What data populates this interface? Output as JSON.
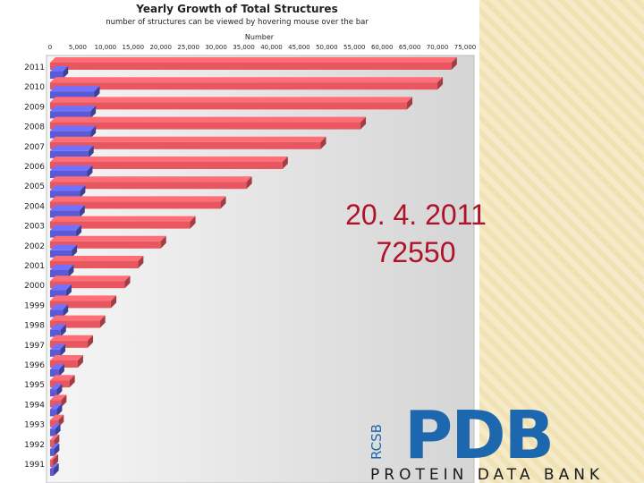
{
  "chart_data": {
    "type": "bar",
    "orientation": "horizontal",
    "title": "Yearly Growth of Total Structures",
    "subtitle": "number of structures can be viewed by hovering mouse over the bar",
    "xlabel": "Number",
    "xlim": [
      0,
      75000
    ],
    "x_ticks": [
      "0",
      "5,000",
      "10,000",
      "15,000",
      "20,000",
      "25,000",
      "30,000",
      "35,000",
      "40,000",
      "45,000",
      "50,000",
      "55,000",
      "60,000",
      "65,000",
      "70,000",
      "75,000"
    ],
    "categories": [
      "2011",
      "2010",
      "2009",
      "2008",
      "2007",
      "2006",
      "2005",
      "2004",
      "2003",
      "2002",
      "2001",
      "2000",
      "1999",
      "1998",
      "1997",
      "1996",
      "1995",
      "1994",
      "1993",
      "1992",
      "1991"
    ],
    "series": [
      {
        "color": "#e8575f",
        "values": [
          72550,
          70000,
          64500,
          56100,
          48900,
          42000,
          35500,
          30800,
          25300,
          20000,
          15900,
          13500,
          11000,
          9000,
          6800,
          5000,
          3500,
          2000,
          1500,
          700,
          500
        ]
      },
      {
        "color": "#5a5ad6",
        "values": [
          2300,
          8000,
          7300,
          7300,
          6900,
          6700,
          5400,
          5300,
          4700,
          3900,
          3300,
          2900,
          2300,
          1900,
          1800,
          1600,
          1200,
          1200,
          900,
          700,
          600
        ]
      }
    ],
    "grid": false,
    "legend": "none"
  },
  "caption": {
    "date": "20. 4. 2011",
    "count": "72550"
  },
  "logo": {
    "mark": "PDB",
    "vertical": "RCSB",
    "text": "PROTEIN DATA BANK",
    "color": "#1c67ad"
  }
}
